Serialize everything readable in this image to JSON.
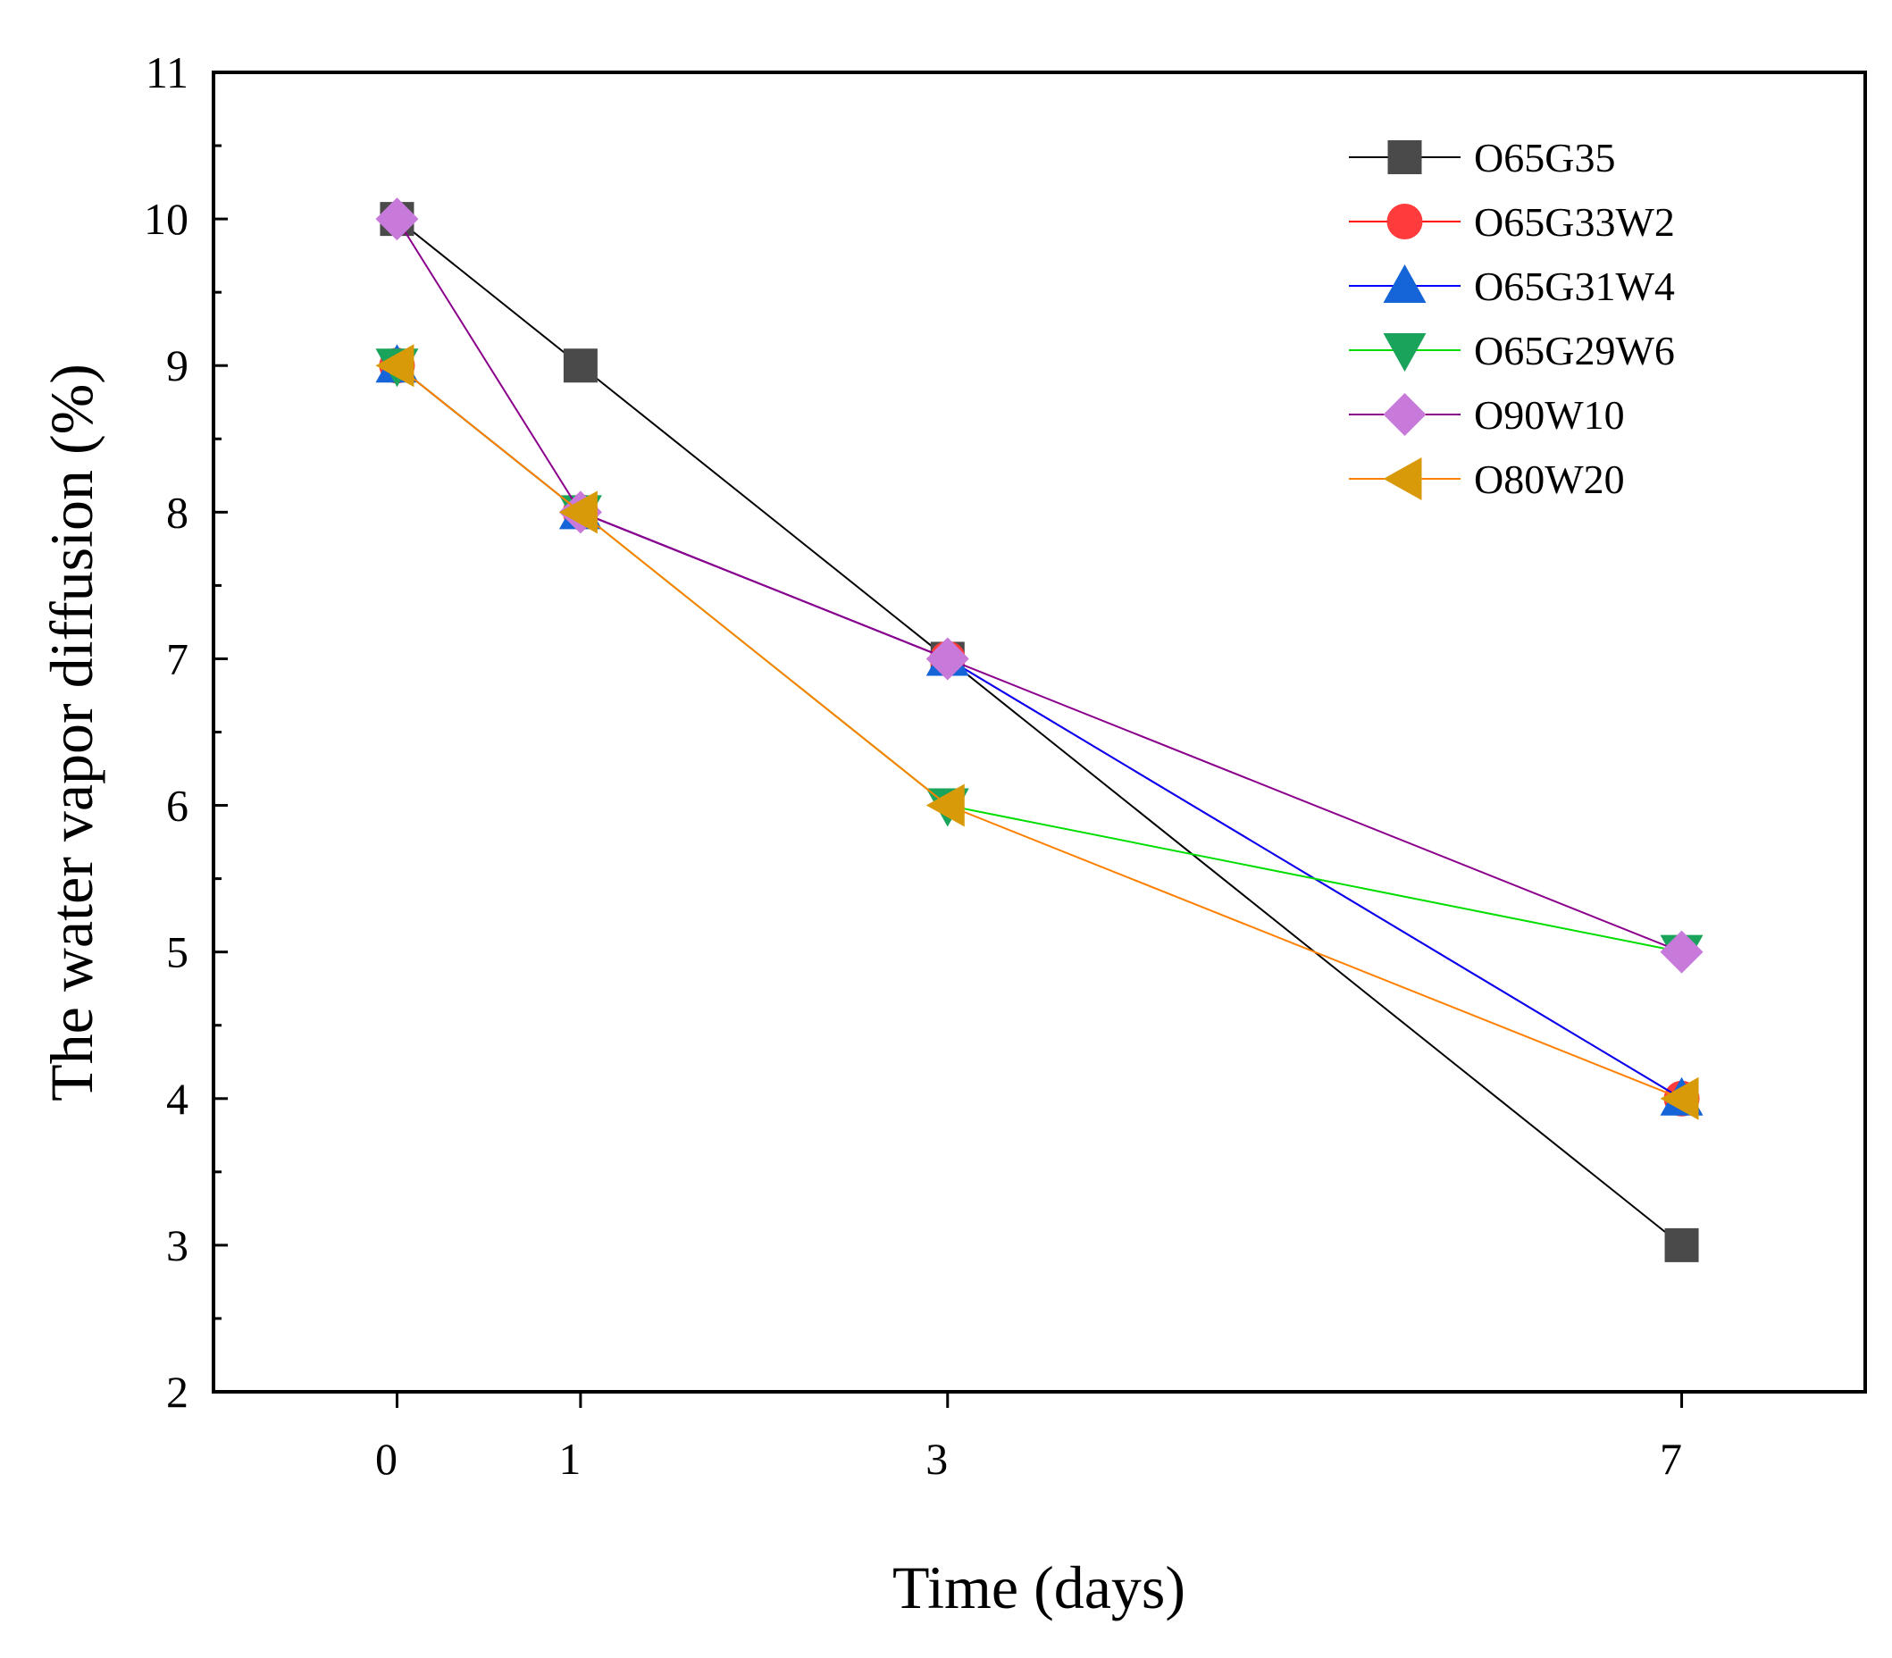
{
  "chart_data": {
    "type": "line",
    "title": "",
    "xlabel": "Time (days)",
    "ylabel": "The water vapor diffusion (%)",
    "x": [
      0,
      1,
      3,
      7
    ],
    "x_ticks": [
      "0",
      "1",
      "3",
      "7"
    ],
    "xlim": [
      -1,
      8
    ],
    "ylim": [
      2,
      11
    ],
    "y_ticks": [
      "2",
      "3",
      "4",
      "5",
      "6",
      "7",
      "8",
      "9",
      "10",
      "11"
    ],
    "grid": false,
    "legend_position": "top-right",
    "series": [
      {
        "name": "O65G35",
        "values": [
          10,
          9,
          7,
          3
        ],
        "color": "#000000",
        "marker": "square",
        "marker_color": "#4a4a4a"
      },
      {
        "name": "O65G33W2",
        "values": [
          9,
          8,
          7,
          4
        ],
        "color": "#ff0000",
        "marker": "circle",
        "marker_color": "#ff3b3b"
      },
      {
        "name": "O65G31W4",
        "values": [
          9,
          8,
          7,
          4
        ],
        "color": "#0000ff",
        "marker": "triangle-up",
        "marker_color": "#1565d8"
      },
      {
        "name": "O65G29W6",
        "values": [
          9,
          8,
          6,
          5
        ],
        "color": "#00dd00",
        "marker": "triangle-down",
        "marker_color": "#1aa35a"
      },
      {
        "name": "O90W10",
        "values": [
          10,
          8,
          7,
          5
        ],
        "color": "#8b008b",
        "marker": "diamond",
        "marker_color": "#c77ad9"
      },
      {
        "name": "O80W20",
        "values": [
          9,
          8,
          6,
          4
        ],
        "color": "#ff8000",
        "marker": "triangle-left",
        "marker_color": "#d99a0a"
      }
    ]
  }
}
